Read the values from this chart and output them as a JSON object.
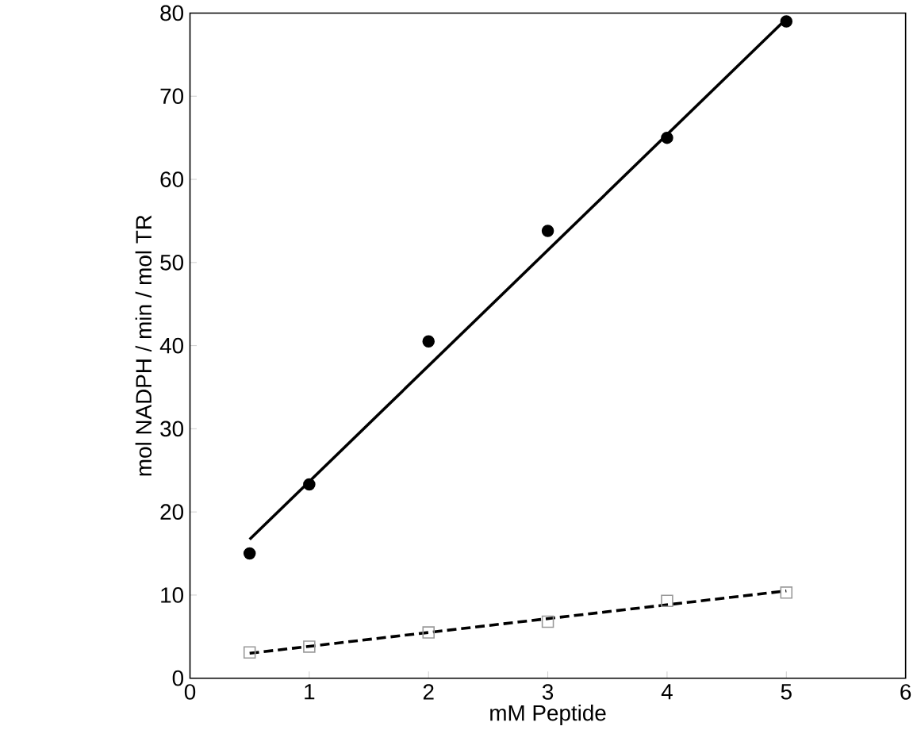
{
  "chart_data": {
    "type": "scatter",
    "xlabel": "mM Peptide",
    "ylabel": "mol NADPH / min / mol TR",
    "xlim": [
      0,
      6
    ],
    "ylim": [
      0,
      80
    ],
    "xticks": [
      0,
      1,
      2,
      3,
      4,
      5,
      6
    ],
    "yticks": [
      0,
      10,
      20,
      30,
      40,
      50,
      60,
      70,
      80
    ],
    "series": [
      {
        "type": "scatter",
        "marker": "circle",
        "color": "#000000",
        "x": [
          0.5,
          1,
          2,
          3,
          4,
          5
        ],
        "values": [
          15,
          23.3,
          40.5,
          53.8,
          65,
          79
        ]
      },
      {
        "type": "line",
        "marker": "none",
        "line_style": "solid",
        "color": "#000000",
        "x": [
          0.5,
          5
        ],
        "values": [
          16.7,
          79.3
        ]
      },
      {
        "type": "scatter",
        "marker": "square",
        "color": "#999999",
        "x": [
          0.5,
          1,
          2,
          3,
          4,
          5
        ],
        "values": [
          3.1,
          3.8,
          5.5,
          6.8,
          9.3,
          10.3
        ]
      },
      {
        "type": "line",
        "marker": "none",
        "line_style": "dashed",
        "color": "#000000",
        "x": [
          0.5,
          5
        ],
        "values": [
          3.0,
          10.5
        ]
      }
    ]
  }
}
